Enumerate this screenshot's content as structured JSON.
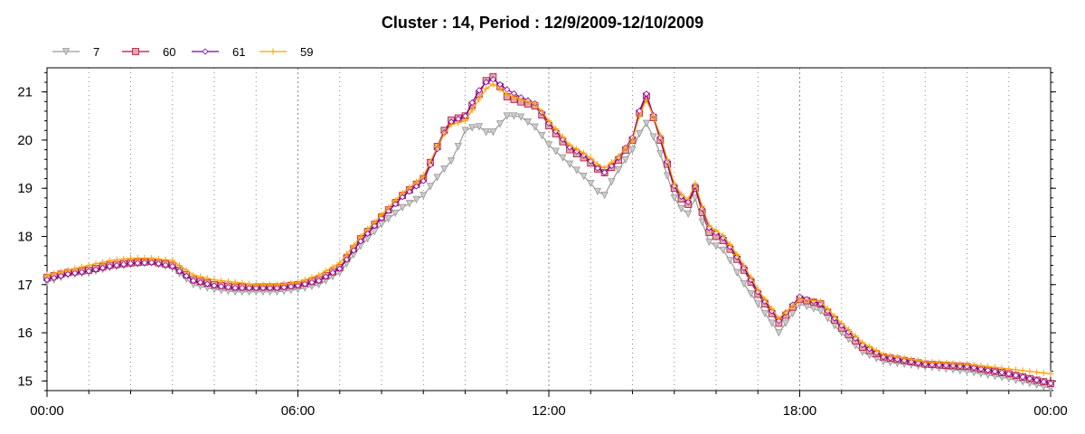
{
  "chart_data": {
    "type": "line",
    "title": "Cluster : 14, Period : 12/9/2009-12/10/2009",
    "xlabel": "",
    "ylabel": "",
    "x_ticks": [
      "00:00",
      "06:00",
      "12:00",
      "18:00",
      "00:00"
    ],
    "y_ticks": [
      15,
      16,
      17,
      18,
      19,
      20,
      21
    ],
    "xlim_hours": [
      0,
      24
    ],
    "ylim": [
      14.8,
      21.5
    ],
    "grid": true,
    "legend": "top-left",
    "series": [
      {
        "name": "7",
        "color": "#999999",
        "marker": "triangle-down",
        "points": [
          [
            0,
            17.05
          ],
          [
            0.5,
            17.2
          ],
          [
            1,
            17.25
          ],
          [
            1.5,
            17.35
          ],
          [
            2,
            17.42
          ],
          [
            2.5,
            17.45
          ],
          [
            3,
            17.35
          ],
          [
            3.5,
            17.0
          ],
          [
            4,
            16.9
          ],
          [
            4.5,
            16.85
          ],
          [
            5,
            16.85
          ],
          [
            5.5,
            16.85
          ],
          [
            6,
            16.9
          ],
          [
            6.5,
            17.0
          ],
          [
            7,
            17.25
          ],
          [
            7.5,
            17.8
          ],
          [
            8,
            18.25
          ],
          [
            8.5,
            18.6
          ],
          [
            9,
            18.85
          ],
          [
            9.4,
            19.3
          ],
          [
            9.7,
            19.6
          ],
          [
            10,
            20.2
          ],
          [
            10.3,
            20.3
          ],
          [
            10.6,
            20.1
          ],
          [
            11,
            20.5
          ],
          [
            11.3,
            20.5
          ],
          [
            11.7,
            20.25
          ],
          [
            12,
            19.9
          ],
          [
            12.5,
            19.5
          ],
          [
            12.9,
            19.2
          ],
          [
            13.3,
            18.8
          ],
          [
            13.6,
            19.3
          ],
          [
            14,
            19.8
          ],
          [
            14.3,
            20.4
          ],
          [
            14.6,
            19.9
          ],
          [
            15,
            18.8
          ],
          [
            15.3,
            18.4
          ],
          [
            15.5,
            18.8
          ],
          [
            15.8,
            17.9
          ],
          [
            16.2,
            17.7
          ],
          [
            16.6,
            17.1
          ],
          [
            17,
            16.6
          ],
          [
            17.5,
            16.0
          ],
          [
            18,
            16.6
          ],
          [
            18.5,
            16.45
          ],
          [
            19,
            16.0
          ],
          [
            19.5,
            15.6
          ],
          [
            20,
            15.4
          ],
          [
            21,
            15.3
          ],
          [
            22,
            15.2
          ],
          [
            23,
            15.05
          ],
          [
            24,
            14.85
          ]
        ]
      },
      {
        "name": "60",
        "color": "#b01040",
        "marker": "square",
        "points": [
          [
            0,
            17.15
          ],
          [
            0.5,
            17.25
          ],
          [
            1,
            17.3
          ],
          [
            1.5,
            17.4
          ],
          [
            2,
            17.45
          ],
          [
            2.5,
            17.48
          ],
          [
            3,
            17.4
          ],
          [
            3.5,
            17.1
          ],
          [
            4,
            17.0
          ],
          [
            4.5,
            16.95
          ],
          [
            5,
            16.95
          ],
          [
            5.5,
            16.95
          ],
          [
            6,
            17.0
          ],
          [
            6.5,
            17.1
          ],
          [
            7,
            17.35
          ],
          [
            7.5,
            17.95
          ],
          [
            8,
            18.4
          ],
          [
            8.5,
            18.85
          ],
          [
            9,
            19.2
          ],
          [
            9.3,
            19.8
          ],
          [
            9.6,
            20.4
          ],
          [
            10,
            20.5
          ],
          [
            10.3,
            20.9
          ],
          [
            10.6,
            21.4
          ],
          [
            11,
            20.9
          ],
          [
            11.3,
            20.8
          ],
          [
            11.7,
            20.7
          ],
          [
            12,
            20.3
          ],
          [
            12.5,
            19.8
          ],
          [
            12.9,
            19.6
          ],
          [
            13.3,
            19.3
          ],
          [
            13.6,
            19.5
          ],
          [
            14,
            20.0
          ],
          [
            14.3,
            21.0
          ],
          [
            14.6,
            20.2
          ],
          [
            15,
            19.0
          ],
          [
            15.3,
            18.6
          ],
          [
            15.5,
            19.0
          ],
          [
            15.8,
            18.1
          ],
          [
            16.2,
            17.9
          ],
          [
            16.6,
            17.4
          ],
          [
            17,
            16.8
          ],
          [
            17.5,
            16.2
          ],
          [
            18,
            16.7
          ],
          [
            18.5,
            16.6
          ],
          [
            19,
            16.1
          ],
          [
            19.5,
            15.7
          ],
          [
            20,
            15.5
          ],
          [
            21,
            15.35
          ],
          [
            22,
            15.3
          ],
          [
            23,
            15.15
          ],
          [
            24,
            14.95
          ]
        ]
      },
      {
        "name": "61",
        "color": "#8000a0",
        "marker": "diamond",
        "points": [
          [
            0,
            17.1
          ],
          [
            0.5,
            17.22
          ],
          [
            1,
            17.28
          ],
          [
            1.5,
            17.38
          ],
          [
            2,
            17.44
          ],
          [
            2.5,
            17.46
          ],
          [
            3,
            17.38
          ],
          [
            3.5,
            17.08
          ],
          [
            4,
            16.98
          ],
          [
            4.5,
            16.93
          ],
          [
            5,
            16.93
          ],
          [
            5.5,
            16.93
          ],
          [
            6,
            16.98
          ],
          [
            6.5,
            17.08
          ],
          [
            7,
            17.33
          ],
          [
            7.5,
            17.9
          ],
          [
            8,
            18.38
          ],
          [
            8.5,
            18.82
          ],
          [
            9,
            19.15
          ],
          [
            9.3,
            19.75
          ],
          [
            9.6,
            20.35
          ],
          [
            10,
            20.5
          ],
          [
            10.3,
            21.0
          ],
          [
            10.6,
            21.3
          ],
          [
            11,
            21.05
          ],
          [
            11.3,
            20.9
          ],
          [
            11.7,
            20.75
          ],
          [
            12,
            20.35
          ],
          [
            12.5,
            19.85
          ],
          [
            12.9,
            19.65
          ],
          [
            13.3,
            19.3
          ],
          [
            13.6,
            19.55
          ],
          [
            14,
            20.05
          ],
          [
            14.3,
            21.05
          ],
          [
            14.6,
            20.25
          ],
          [
            15,
            19.05
          ],
          [
            15.3,
            18.65
          ],
          [
            15.5,
            19.05
          ],
          [
            15.8,
            18.2
          ],
          [
            16.2,
            17.95
          ],
          [
            16.6,
            17.45
          ],
          [
            17,
            16.85
          ],
          [
            17.5,
            16.25
          ],
          [
            18,
            16.75
          ],
          [
            18.5,
            16.6
          ],
          [
            19,
            16.15
          ],
          [
            19.5,
            15.75
          ],
          [
            20,
            15.5
          ],
          [
            21,
            15.35
          ],
          [
            22,
            15.3
          ],
          [
            23,
            15.15
          ],
          [
            24,
            14.95
          ]
        ]
      },
      {
        "name": "59",
        "color": "#ffa000",
        "marker": "plus",
        "points": [
          [
            0,
            17.2
          ],
          [
            0.5,
            17.3
          ],
          [
            1,
            17.4
          ],
          [
            1.5,
            17.5
          ],
          [
            2,
            17.55
          ],
          [
            2.5,
            17.55
          ],
          [
            3,
            17.5
          ],
          [
            3.5,
            17.2
          ],
          [
            4,
            17.1
          ],
          [
            4.5,
            17.05
          ],
          [
            5,
            17.0
          ],
          [
            5.5,
            17.0
          ],
          [
            6,
            17.05
          ],
          [
            6.5,
            17.2
          ],
          [
            7,
            17.45
          ],
          [
            7.5,
            18.0
          ],
          [
            8,
            18.45
          ],
          [
            8.5,
            18.9
          ],
          [
            9,
            19.25
          ],
          [
            9.3,
            19.8
          ],
          [
            9.6,
            20.3
          ],
          [
            10,
            20.4
          ],
          [
            10.3,
            20.8
          ],
          [
            10.6,
            21.2
          ],
          [
            11,
            20.95
          ],
          [
            11.3,
            20.85
          ],
          [
            11.7,
            20.75
          ],
          [
            12,
            20.4
          ],
          [
            12.5,
            19.9
          ],
          [
            12.9,
            19.7
          ],
          [
            13.3,
            19.4
          ],
          [
            13.6,
            19.6
          ],
          [
            14,
            20.0
          ],
          [
            14.3,
            20.9
          ],
          [
            14.6,
            20.3
          ],
          [
            15,
            19.1
          ],
          [
            15.3,
            18.7
          ],
          [
            15.5,
            19.1
          ],
          [
            15.8,
            18.25
          ],
          [
            16.2,
            18.0
          ],
          [
            16.6,
            17.5
          ],
          [
            17,
            16.9
          ],
          [
            17.5,
            16.3
          ],
          [
            18,
            16.7
          ],
          [
            18.5,
            16.65
          ],
          [
            19,
            16.2
          ],
          [
            19.5,
            15.8
          ],
          [
            20,
            15.55
          ],
          [
            21,
            15.4
          ],
          [
            22,
            15.35
          ],
          [
            23,
            15.25
          ],
          [
            24,
            15.15
          ]
        ]
      }
    ]
  }
}
